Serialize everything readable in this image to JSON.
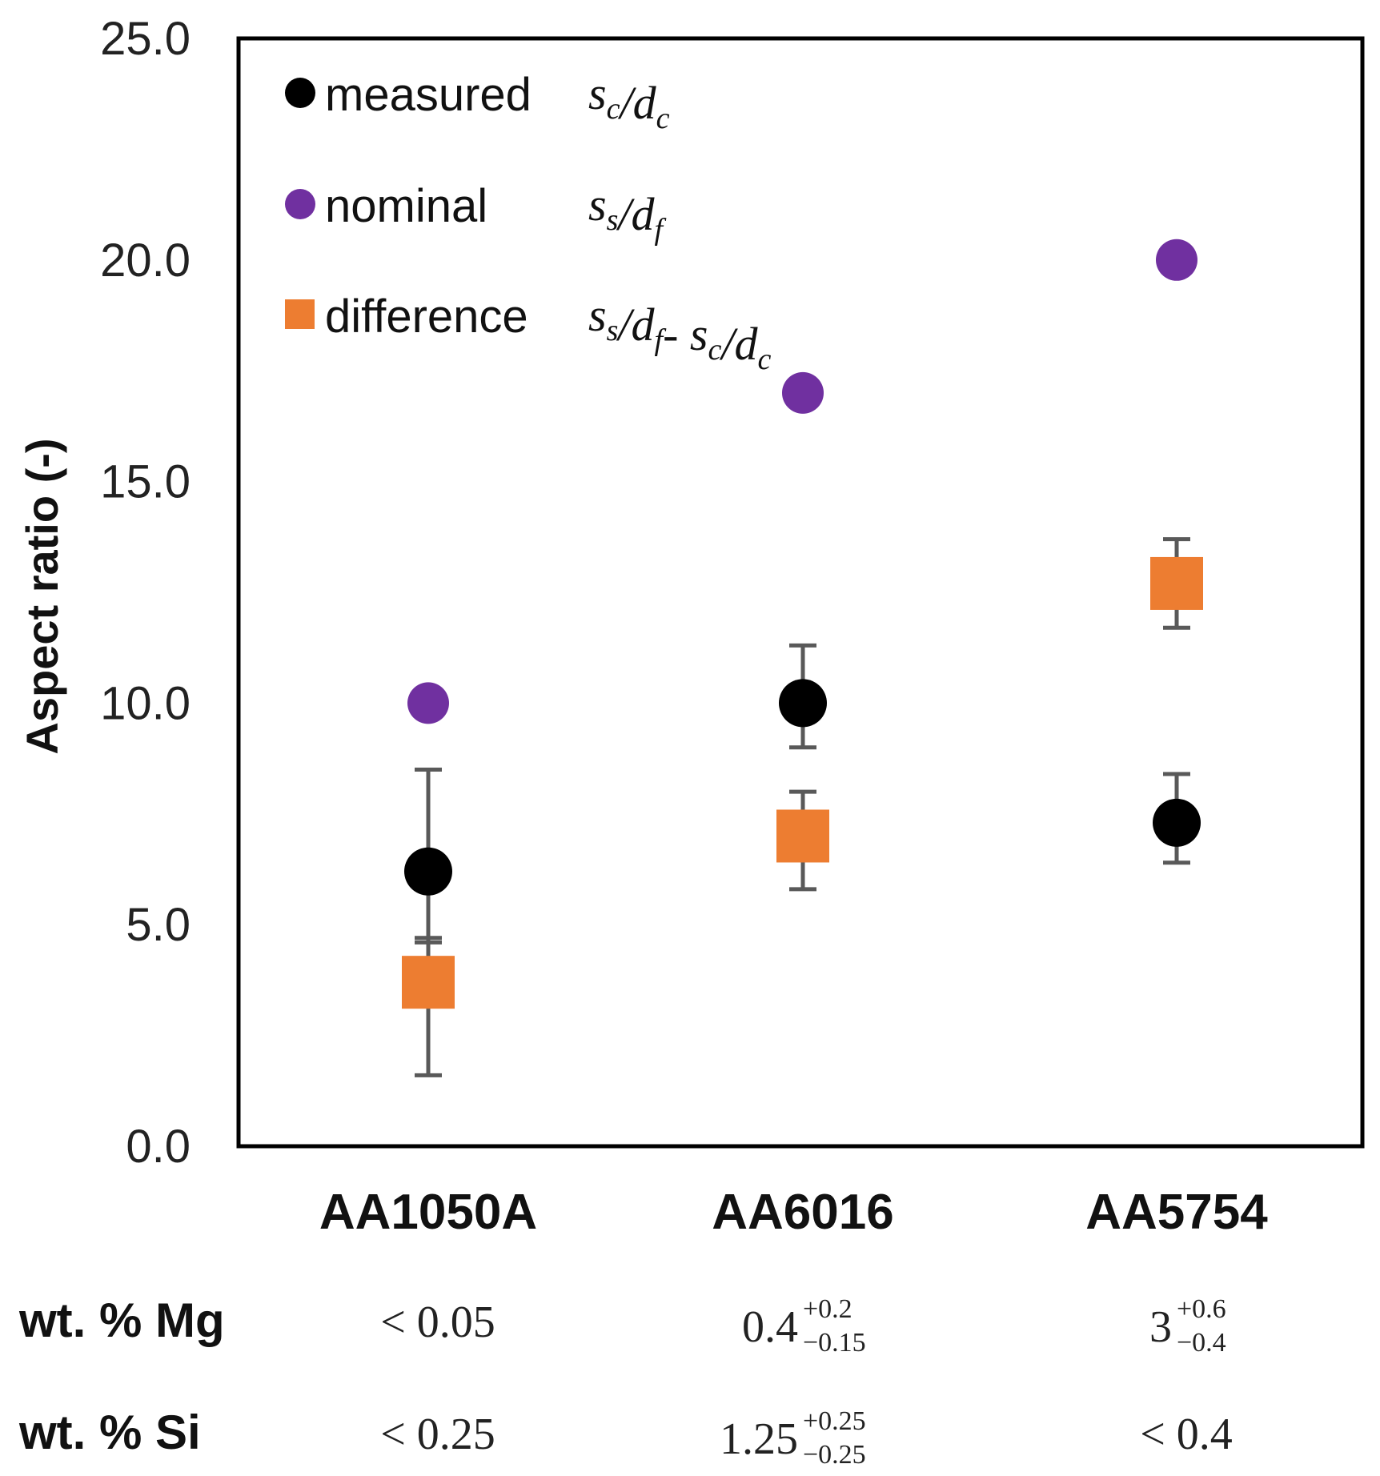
{
  "chart_data": {
    "type": "scatter",
    "ylabel": "Aspect ratio (-)",
    "ylim": [
      0,
      25
    ],
    "yticks": [
      0,
      5,
      10,
      15,
      20,
      25
    ],
    "ytick_labels": [
      "0.0",
      "5.0",
      "10.0",
      "15.0",
      "20.0",
      "25.0"
    ],
    "categories": [
      "AA1050A",
      "AA6016",
      "AA5754"
    ],
    "colors": {
      "measured": "#000000",
      "nominal": "#7030a0",
      "difference": "#ed7d31",
      "errorbar": "#595959",
      "frame": "#000000"
    },
    "series": [
      {
        "name": "measured",
        "math_sym": "s",
        "math_sub": "c",
        "math_sym2": "d",
        "math_sub2": "c",
        "marker": "circle",
        "values": [
          6.2,
          10.0,
          7.3
        ],
        "err_low": [
          1.6,
          1.0,
          0.9
        ],
        "err_high": [
          2.3,
          1.3,
          1.1
        ]
      },
      {
        "name": "nominal",
        "math_sym": "s",
        "math_sub": "s",
        "math_sym2": "d",
        "math_sub2": "f",
        "marker": "circle",
        "values": [
          10.0,
          17.0,
          20.0
        ]
      },
      {
        "name": "difference",
        "math_sym": "s",
        "math_sub": "s",
        "math_sym2": "d",
        "math_sub2": "f",
        "math_sym3": "s",
        "math_sub3": "c",
        "math_sym4": "d",
        "math_sub4": "c",
        "marker": "square",
        "values": [
          3.7,
          7.0,
          12.7
        ],
        "err_low": [
          2.1,
          1.2,
          1.0
        ],
        "err_high": [
          1.0,
          1.0,
          1.0
        ]
      }
    ],
    "composition": [
      {
        "label": "wt. % Mg",
        "entries": [
          {
            "main": "< 0.05",
            "sup": "",
            "sub": ""
          },
          {
            "main": "0.4",
            "sup": "+0.2",
            "sub": "−0.15"
          },
          {
            "main": "3",
            "sup": "+0.6",
            "sub": "−0.4"
          }
        ]
      },
      {
        "label": "wt. % Si",
        "entries": [
          {
            "main": "< 0.25",
            "sup": "",
            "sub": ""
          },
          {
            "main": "1.25",
            "sup": "+0.25",
            "sub": "−0.25"
          },
          {
            "main": "< 0.4",
            "sup": "",
            "sub": ""
          }
        ]
      }
    ]
  }
}
